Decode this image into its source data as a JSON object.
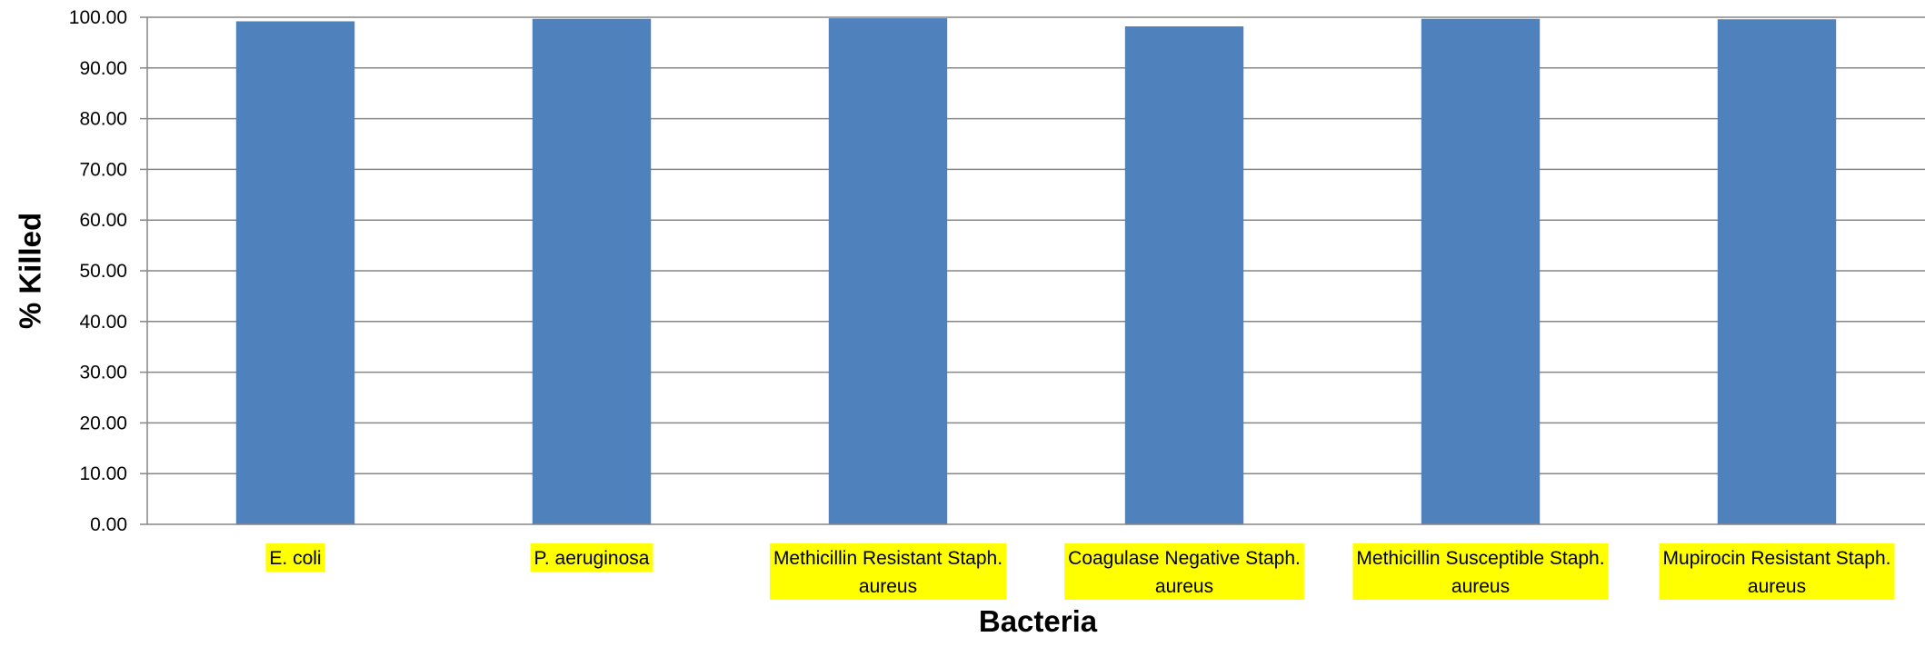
{
  "chart_data": {
    "type": "bar",
    "title": "",
    "xlabel": "Bacteria",
    "ylabel": "% Killed",
    "ylim": [
      0,
      100
    ],
    "y_ticks": [
      "0.00",
      "10.00",
      "20.00",
      "30.00",
      "40.00",
      "50.00",
      "60.00",
      "70.00",
      "80.00",
      "90.00",
      "100.00"
    ],
    "y_tick_values": [
      0,
      10,
      20,
      30,
      40,
      50,
      60,
      70,
      80,
      90,
      100
    ],
    "categories": [
      [
        "E. coli"
      ],
      [
        "P. aeruginosa"
      ],
      [
        "Methicillin Resistant Staph.",
        "aureus"
      ],
      [
        "Coagulase Negative Staph.",
        "aureus"
      ],
      [
        "Methicillin Susceptible Staph.",
        "aureus"
      ],
      [
        "Mupirocin Resistant Staph.",
        "aureus"
      ]
    ],
    "values": [
      99.2,
      99.7,
      99.8,
      98.2,
      99.7,
      99.6
    ],
    "grid": true,
    "legend": "none",
    "colors": {
      "bar": "#4f81bd",
      "grid": "#868686",
      "axis": "#868686",
      "label_highlight": "#ffff00"
    }
  }
}
